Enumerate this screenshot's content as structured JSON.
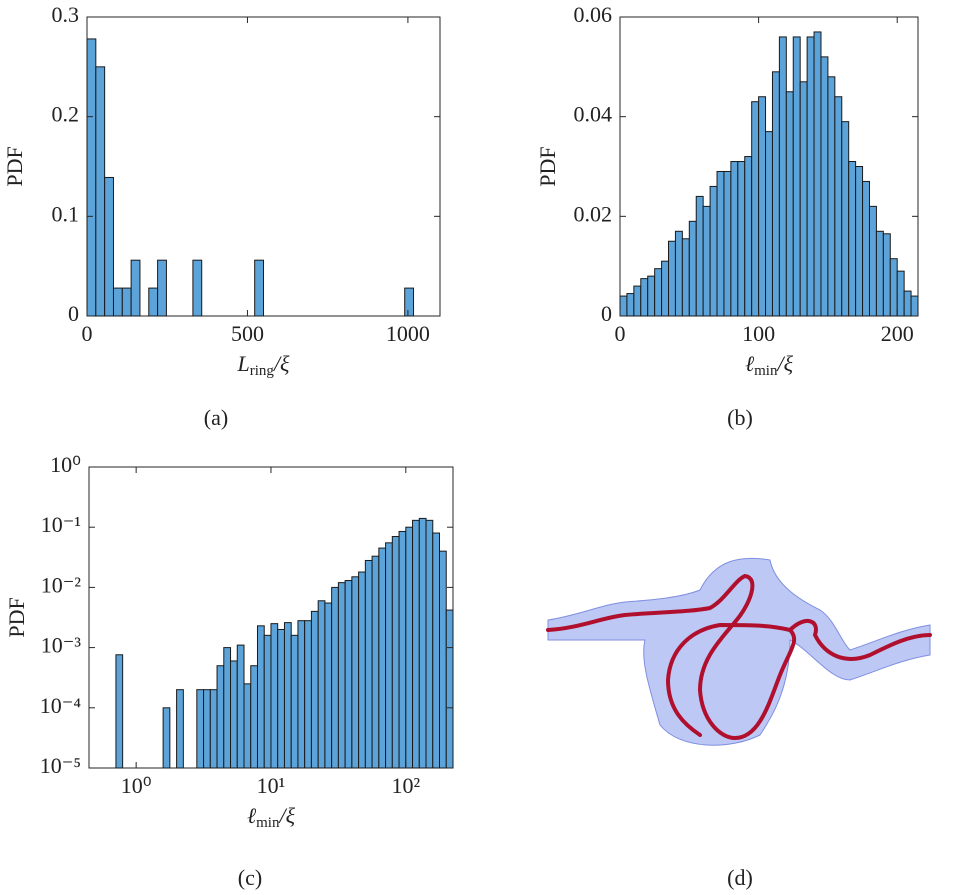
{
  "chart_data": [
    {
      "type": "histogram",
      "caption": "(a)",
      "ylabel": "PDF",
      "xlabel": {
        "main": "L",
        "sub": "ring",
        "tail": "/ξ"
      },
      "color": "#5ba3d9",
      "bins": [
        0,
        27.5,
        55,
        82.5,
        110,
        137.5,
        165,
        192.5,
        220,
        247.5,
        275,
        302.5,
        330,
        357.5,
        385,
        412.5,
        440,
        467.5,
        495,
        522.5,
        550,
        577.5,
        605,
        632.5,
        660,
        687.5,
        715,
        742.5,
        770,
        797.5,
        825,
        852.5,
        880,
        907.5,
        935,
        962.5,
        990,
        1017.5,
        1045,
        1072.5,
        1100
      ],
      "values": [
        0.278,
        0.25,
        0.139,
        0.028,
        0.028,
        0.056,
        0,
        0.028,
        0.056,
        0,
        0,
        0,
        0.056,
        0,
        0,
        0,
        0,
        0,
        0,
        0.056,
        0,
        0,
        0,
        0,
        0,
        0,
        0,
        0,
        0,
        0,
        0,
        0,
        0,
        0,
        0,
        0,
        0.028,
        0,
        0,
        0
      ],
      "xlim": [
        0,
        1100
      ],
      "ylim": [
        0,
        0.3
      ],
      "xticks": [
        0,
        500,
        1000
      ],
      "yticks": [
        0,
        0.1,
        0.2,
        0.3
      ]
    },
    {
      "type": "histogram",
      "caption": "(b)",
      "ylabel": "PDF",
      "xlabel": {
        "main": "ℓ",
        "sub": "min",
        "tail": "/ξ"
      },
      "color": "#5ba3d9",
      "bins": [
        0,
        5,
        10,
        15,
        20,
        25,
        30,
        35,
        40,
        45,
        50,
        55,
        60,
        65,
        70,
        75,
        80,
        85,
        90,
        95,
        100,
        105,
        110,
        115,
        120,
        125,
        130,
        135,
        140,
        145,
        150,
        155,
        160,
        165,
        170,
        175,
        180,
        185,
        190,
        195,
        200,
        205,
        210,
        215
      ],
      "values": [
        0.004,
        0.0045,
        0.006,
        0.0075,
        0.008,
        0.0095,
        0.011,
        0.015,
        0.017,
        0.0155,
        0.019,
        0.024,
        0.022,
        0.026,
        0.029,
        0.029,
        0.031,
        0.031,
        0.032,
        0.043,
        0.044,
        0.037,
        0.049,
        0.056,
        0.045,
        0.056,
        0.047,
        0.056,
        0.057,
        0.052,
        0.048,
        0.044,
        0.039,
        0.031,
        0.03,
        0.027,
        0.022,
        0.017,
        0.0165,
        0.0115,
        0.009,
        0.005,
        0.004
      ],
      "xlim": [
        0,
        215
      ],
      "ylim": [
        0,
        0.06
      ],
      "xticks": [
        0,
        100,
        200
      ],
      "yticks": [
        0,
        0.02,
        0.04,
        0.06
      ]
    },
    {
      "type": "histogram",
      "caption": "(c)",
      "ylabel": "PDF",
      "xlabel": {
        "main": "ℓ",
        "sub": "min",
        "tail": "/ξ"
      },
      "color": "#5ba3d9",
      "xscale": "log",
      "yscale": "log",
      "bins": [
        0.447,
        0.501,
        0.562,
        0.631,
        0.708,
        0.794,
        0.891,
        1,
        1.122,
        1.259,
        1.413,
        1.585,
        1.778,
        1.995,
        2.239,
        2.512,
        2.818,
        3.162,
        3.548,
        3.981,
        4.467,
        5.012,
        5.623,
        6.31,
        7.079,
        7.943,
        8.913,
        10,
        11.22,
        12.59,
        14.13,
        15.85,
        17.78,
        19.95,
        22.39,
        25.12,
        28.18,
        31.62,
        35.48,
        39.81,
        44.67,
        50.12,
        56.23,
        63.1,
        70.79,
        79.43,
        89.13,
        100,
        112.2,
        125.9,
        141.3,
        158.5,
        177.8,
        199.5,
        223.9
      ],
      "values": [
        null,
        null,
        null,
        null,
        0.00076,
        null,
        null,
        null,
        null,
        null,
        null,
        0.0001,
        null,
        0.0002,
        null,
        null,
        0.0002,
        0.0002,
        0.0002,
        0.0005,
        0.001,
        0.0006,
        0.0011,
        0.00025,
        0.0005,
        0.0023,
        0.0016,
        0.0025,
        0.002,
        0.0026,
        0.0016,
        0.0028,
        0.0028,
        0.004,
        0.006,
        0.0055,
        0.01,
        0.012,
        0.013,
        0.015,
        0.018,
        0.028,
        0.033,
        0.045,
        0.055,
        0.07,
        0.085,
        0.1,
        0.13,
        0.14,
        0.13,
        0.08,
        0.04,
        0.0042
      ],
      "xlim": [
        0.447,
        223.9
      ],
      "ylim": [
        1e-05,
        1
      ],
      "xticks": [
        {
          "value": 1,
          "label": "10⁰"
        },
        {
          "value": 10,
          "label": "10¹"
        },
        {
          "value": 100,
          "label": "10²"
        }
      ],
      "yticks": [
        {
          "value": 1e-05,
          "label": "10⁻⁵"
        },
        {
          "value": 0.0001,
          "label": "10⁻⁴"
        },
        {
          "value": 0.001,
          "label": "10⁻³"
        },
        {
          "value": 0.01,
          "label": "10⁻²"
        },
        {
          "value": 0.1,
          "label": "10⁻¹"
        },
        {
          "value": 1,
          "label": "10⁰"
        }
      ]
    }
  ],
  "figure_d": {
    "caption": "(d)"
  }
}
